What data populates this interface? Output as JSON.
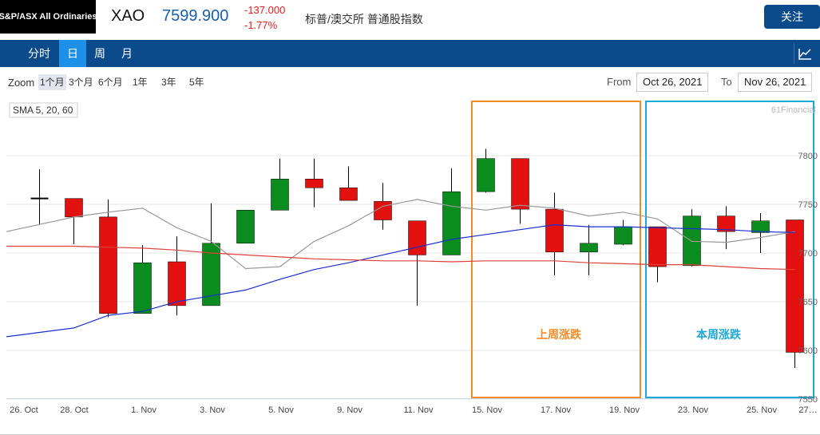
{
  "header": {
    "index_name": "S&P/ASX All Ordinaries",
    "ticker": "XAO",
    "price": "7599.900",
    "change": "-137.000",
    "change_pct": "-1.77%",
    "description": "标普/澳交所 普通股指数",
    "follow_label": "关注"
  },
  "nav": {
    "tabs": [
      {
        "label": "分时",
        "active": false
      },
      {
        "label": "日",
        "active": true
      },
      {
        "label": "周",
        "active": false
      },
      {
        "label": "月",
        "active": false
      }
    ],
    "chart_icon": "chart-line-icon"
  },
  "controls": {
    "zoom_label": "Zoom",
    "zoom_options": [
      {
        "label": "1个月",
        "active": true
      },
      {
        "label": "3个月",
        "active": false
      },
      {
        "label": "6个月",
        "active": false
      },
      {
        "label": "1年",
        "active": false
      },
      {
        "label": "3年",
        "active": false
      },
      {
        "label": "5年",
        "active": false
      }
    ],
    "from_label": "From",
    "from_date": "Oct 26, 2021",
    "to_label": "To",
    "to_date": "Nov 26, 2021"
  },
  "colors": {
    "up": "#0a8c1e",
    "down": "#e31010",
    "sma_gray": "#999999",
    "sma_blue": "#1a2fd0",
    "sma_red": "#e0403a",
    "box_last_week": "#f28c28",
    "box_this_week": "#1fa8d6",
    "nav_bg": "#0b4b8c",
    "nav_active": "#1e90e8"
  },
  "chart_data": {
    "type": "candlestick",
    "legend": "SMA 5, 20, 60",
    "watermark": "61Financial",
    "ylim": [
      7550,
      7825
    ],
    "y_ticks": [
      7550,
      7600,
      7650,
      7700,
      7750,
      7800
    ],
    "y_tick_labels": [
      "7550",
      "7600",
      "7650",
      "7700",
      "7750",
      "7800"
    ],
    "x_tick_labels": [
      "26. Oct",
      "28. Oct",
      "1. Nov",
      "3. Nov",
      "5. Nov",
      "7. Nov",
      "9. Nov",
      "11. Nov",
      "15. Nov",
      "17. Nov",
      "19. Nov",
      "23. Nov",
      "25. Nov",
      "27…"
    ],
    "candles": [
      {
        "date": "Oct 26",
        "open": 7756,
        "close": 7756,
        "high": 7786,
        "low": 7729
      },
      {
        "date": "Oct 27",
        "open": 7756,
        "close": 7737,
        "high": 7756,
        "low": 7709
      },
      {
        "date": "Oct 28",
        "open": 7737,
        "close": 7638,
        "high": 7755,
        "low": 7634
      },
      {
        "date": "Oct 29",
        "open": 7638,
        "close": 7690,
        "high": 7708,
        "low": 7638
      },
      {
        "date": "Nov 1",
        "open": 7691,
        "close": 7646,
        "high": 7717,
        "low": 7636
      },
      {
        "date": "Nov 2",
        "open": 7646,
        "close": 7710,
        "high": 7751,
        "low": 7646
      },
      {
        "date": "Nov 3",
        "open": 7710,
        "close": 7744,
        "high": 7744,
        "low": 7710
      },
      {
        "date": "Nov 4",
        "open": 7744,
        "close": 7776,
        "high": 7797,
        "low": 7744
      },
      {
        "date": "Nov 5",
        "open": 7776,
        "close": 7767,
        "high": 7797,
        "low": 7747
      },
      {
        "date": "Nov 8",
        "open": 7767,
        "close": 7754,
        "high": 7789,
        "low": 7754
      },
      {
        "date": "Nov 9",
        "open": 7753,
        "close": 7734,
        "high": 7772,
        "low": 7724
      },
      {
        "date": "Nov 10",
        "open": 7733,
        "close": 7698,
        "high": 7733,
        "low": 7646
      },
      {
        "date": "Nov 11",
        "open": 7698,
        "close": 7763,
        "high": 7787,
        "low": 7698
      },
      {
        "date": "Nov 12",
        "open": 7763,
        "close": 7797,
        "high": 7807,
        "low": 7762
      },
      {
        "date": "Nov 15",
        "open": 7797,
        "close": 7745,
        "high": 7797,
        "low": 7730
      },
      {
        "date": "Nov 16",
        "open": 7745,
        "close": 7701,
        "high": 7762,
        "low": 7677
      },
      {
        "date": "Nov 17",
        "open": 7701,
        "close": 7710,
        "high": 7729,
        "low": 7677
      },
      {
        "date": "Nov 18",
        "open": 7709,
        "close": 7727,
        "high": 7734,
        "low": 7708
      },
      {
        "date": "Nov 19",
        "open": 7727,
        "close": 7686,
        "high": 7727,
        "low": 7670
      },
      {
        "date": "Nov 22",
        "open": 7687,
        "close": 7738,
        "high": 7745,
        "low": 7686
      },
      {
        "date": "Nov 23",
        "open": 7738,
        "close": 7722,
        "high": 7748,
        "low": 7704
      },
      {
        "date": "Nov 24",
        "open": 7721,
        "close": 7733,
        "high": 7741,
        "low": 7700
      },
      {
        "date": "Nov 25",
        "open": 7734,
        "close": 7598,
        "high": 7734,
        "low": 7582
      }
    ],
    "sma": [
      {
        "name": "SMA 5",
        "color": "#999999",
        "values": [
          7722,
          7737,
          7742,
          7746,
          7726,
          7712,
          7684,
          7686,
          7712,
          7728,
          7748,
          7755,
          7748,
          7744,
          7749,
          7746,
          7738,
          7742,
          7735,
          7712,
          7711,
          7716,
          7722
        ]
      },
      {
        "name": "SMA 20",
        "color": "#1a2fd0",
        "values": [
          7614,
          7623,
          7636,
          7640,
          7650,
          7656,
          7662,
          7673,
          7683,
          7690,
          7698,
          7706,
          7714,
          7719,
          7724,
          7729,
          7727,
          7727,
          7726,
          7725,
          7724,
          7722,
          7721
        ]
      },
      {
        "name": "SMA 60",
        "color": "#e0403a",
        "values": [
          7707,
          7707,
          7706,
          7705,
          7703,
          7700,
          7698,
          7696,
          7694,
          7693,
          7692,
          7692,
          7691,
          7692,
          7692,
          7692,
          7690,
          7689,
          7688,
          7688,
          7686,
          7684,
          7683
        ]
      }
    ],
    "annotations": [
      {
        "label": "上周涨跌",
        "color": "#f28c28"
      },
      {
        "label": "本周涨跌",
        "color": "#1fa8d6"
      }
    ]
  }
}
